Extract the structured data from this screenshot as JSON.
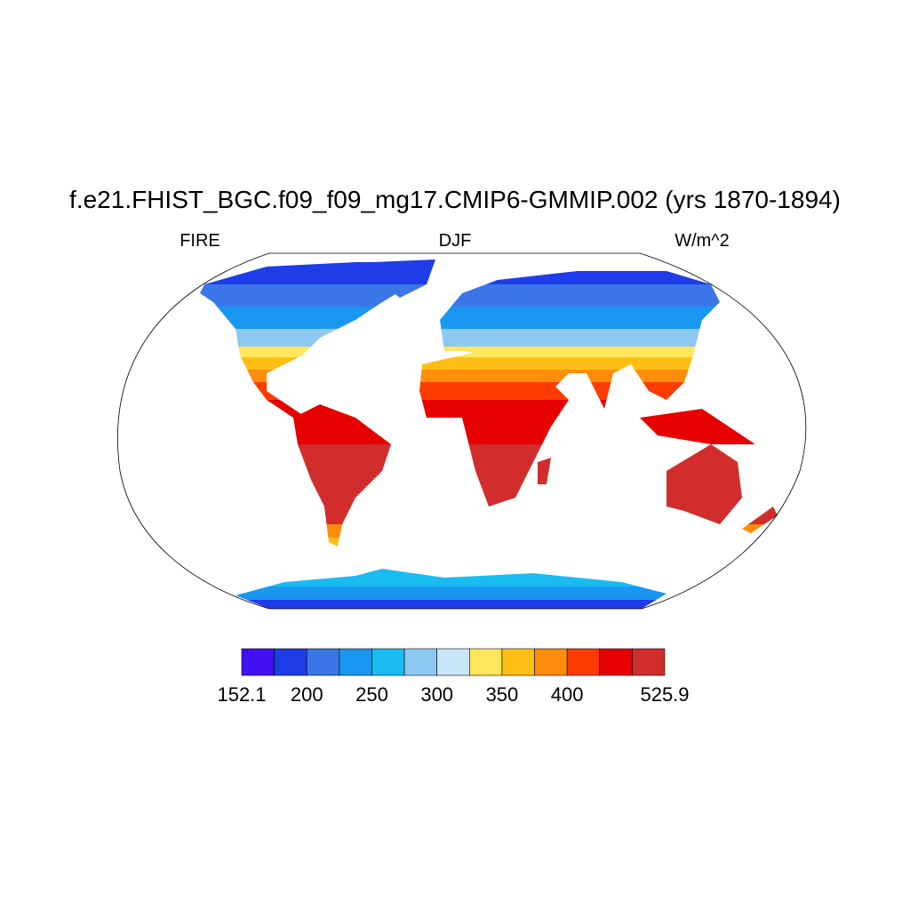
{
  "title": "f.e21.FHIST_BGC.f09_f09_mg17.CMIP6-GMMIP.002 (yrs 1870-1894)",
  "subtitle_left": "FIRE",
  "subtitle_center": "DJF",
  "subtitle_right": "W/m^2",
  "colorbar": {
    "colors": [
      "#4010f0",
      "#1e3ce8",
      "#3a76e8",
      "#1996f0",
      "#19bcf0",
      "#8cc8f0",
      "#c8e6f8",
      "#ffe65a",
      "#ffbe14",
      "#ff8c0a",
      "#ff3c00",
      "#e60000",
      "#d22d2d"
    ],
    "ticks": [
      152.1,
      200,
      250,
      300,
      350,
      400,
      525.9
    ]
  }
}
